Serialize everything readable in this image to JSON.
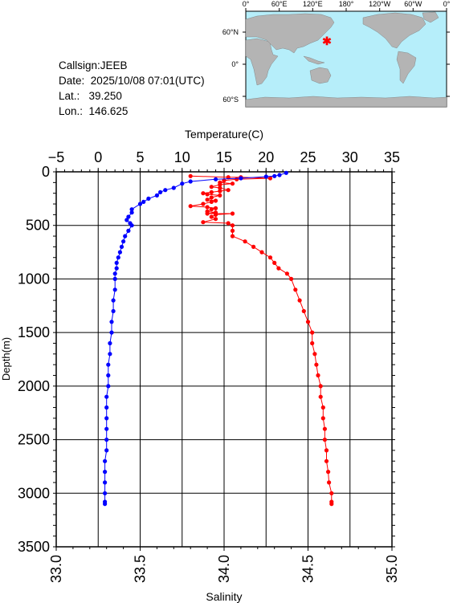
{
  "header": {
    "callsign_label": "Callsign:",
    "callsign": "JEEB",
    "date_label": "Date:",
    "date": "2025/10/08 07:01(UTC)",
    "lat_label": "Lat.:",
    "lat": "39.250",
    "lon_label": "Lon.:",
    "lon": "146.625"
  },
  "map": {
    "top_labels": [
      "0°",
      "60°E",
      "120°E",
      "180°",
      "120°W",
      "60°W",
      "0°"
    ],
    "left_labels": [
      "60°N",
      "0°",
      "60°S"
    ],
    "colors": {
      "ocean": "#b6eefa",
      "land": "#b4b4b4",
      "marker": "#ff0000"
    }
  },
  "chart_data": {
    "type": "line",
    "title": "",
    "xlabel_top": "Temperature(C)",
    "xlabel_bottom": "Salinity",
    "ylabel": "Depth(m)",
    "temperature_range": [
      -5,
      35
    ],
    "salinity_range": [
      33.0,
      35.0
    ],
    "depth_range": [
      0,
      3500
    ],
    "y_inverted": true,
    "grid": true,
    "temperature_ticks": [
      "-5",
      "0",
      "5",
      "10",
      "15",
      "20",
      "25",
      "30",
      "35"
    ],
    "salinity_ticks": [
      "33.0",
      "33.5",
      "34.0",
      "34.5",
      "35.0"
    ],
    "depth_ticks": [
      "0",
      "500",
      "1000",
      "1500",
      "2000",
      "2500",
      "3000",
      "3500"
    ],
    "series": [
      {
        "quantity": "temperature",
        "color": "#ff0000",
        "points": [
          [
            11.0,
            40
          ],
          [
            15.5,
            50
          ],
          [
            17.0,
            50
          ],
          [
            20.5,
            60
          ],
          [
            16.5,
            70
          ],
          [
            15.0,
            80
          ],
          [
            14.5,
            100
          ],
          [
            16.0,
            110
          ],
          [
            14.5,
            120
          ],
          [
            13.5,
            140
          ],
          [
            14.5,
            150
          ],
          [
            15.5,
            170
          ],
          [
            14.5,
            180
          ],
          [
            13.5,
            190
          ],
          [
            12.5,
            200
          ],
          [
            13.0,
            210
          ],
          [
            14.5,
            220
          ],
          [
            13.5,
            240
          ],
          [
            13.0,
            260
          ],
          [
            14.0,
            270
          ],
          [
            13.5,
            280
          ],
          [
            12.5,
            300
          ],
          [
            11.0,
            320
          ],
          [
            13.0,
            330
          ],
          [
            14.0,
            340
          ],
          [
            13.5,
            350
          ],
          [
            13.0,
            370
          ],
          [
            14.0,
            380
          ],
          [
            13.0,
            390
          ],
          [
            16.0,
            390
          ],
          [
            14.0,
            400
          ],
          [
            13.5,
            420
          ],
          [
            14.0,
            440
          ],
          [
            12.5,
            470
          ],
          [
            15.5,
            480
          ],
          [
            16.0,
            500
          ],
          [
            16.0,
            550
          ],
          [
            16.0,
            600
          ],
          [
            17.5,
            650
          ],
          [
            18.5,
            700
          ],
          [
            19.5,
            750
          ],
          [
            20.5,
            800
          ],
          [
            21.0,
            850
          ],
          [
            21.5,
            900
          ],
          [
            22.5,
            950
          ],
          [
            23.0,
            1000
          ],
          [
            23.5,
            1100
          ],
          [
            24.0,
            1200
          ],
          [
            24.5,
            1300
          ],
          [
            25.0,
            1400
          ],
          [
            25.5,
            1500
          ],
          [
            25.5,
            1600
          ],
          [
            25.8,
            1700
          ],
          [
            26.0,
            1800
          ],
          [
            26.2,
            1900
          ],
          [
            26.5,
            2000
          ],
          [
            26.5,
            2100
          ],
          [
            26.8,
            2200
          ],
          [
            26.8,
            2300
          ],
          [
            27.0,
            2400
          ],
          [
            27.0,
            2500
          ],
          [
            27.2,
            2600
          ],
          [
            27.2,
            2700
          ],
          [
            27.4,
            2800
          ],
          [
            27.5,
            2900
          ],
          [
            27.8,
            3000
          ],
          [
            27.8,
            3080
          ],
          [
            27.8,
            3100
          ]
        ]
      },
      {
        "quantity": "salinity",
        "color": "#0000ff",
        "points": [
          [
            34.37,
            10
          ],
          [
            34.33,
            30
          ],
          [
            34.3,
            40
          ],
          [
            34.25,
            45
          ],
          [
            34.1,
            60
          ],
          [
            33.95,
            70
          ],
          [
            33.8,
            90
          ],
          [
            33.75,
            110
          ],
          [
            33.7,
            150
          ],
          [
            33.65,
            170
          ],
          [
            33.62,
            190
          ],
          [
            33.6,
            220
          ],
          [
            33.55,
            250
          ],
          [
            33.52,
            280
          ],
          [
            33.5,
            300
          ],
          [
            33.45,
            350
          ],
          [
            33.45,
            380
          ],
          [
            33.43,
            420
          ],
          [
            33.42,
            450
          ],
          [
            33.44,
            480
          ],
          [
            33.45,
            500
          ],
          [
            33.43,
            550
          ],
          [
            33.41,
            600
          ],
          [
            33.4,
            650
          ],
          [
            33.39,
            700
          ],
          [
            33.38,
            750
          ],
          [
            33.37,
            800
          ],
          [
            33.36,
            850
          ],
          [
            33.36,
            900
          ],
          [
            33.35,
            950
          ],
          [
            33.35,
            1000
          ],
          [
            33.35,
            1100
          ],
          [
            33.34,
            1200
          ],
          [
            33.34,
            1300
          ],
          [
            33.33,
            1400
          ],
          [
            33.33,
            1500
          ],
          [
            33.32,
            1600
          ],
          [
            33.32,
            1700
          ],
          [
            33.31,
            1800
          ],
          [
            33.31,
            1900
          ],
          [
            33.31,
            2000
          ],
          [
            33.3,
            2100
          ],
          [
            33.3,
            2200
          ],
          [
            33.3,
            2300
          ],
          [
            33.3,
            2400
          ],
          [
            33.3,
            2500
          ],
          [
            33.3,
            2600
          ],
          [
            33.29,
            2700
          ],
          [
            33.29,
            2800
          ],
          [
            33.29,
            2900
          ],
          [
            33.29,
            3000
          ],
          [
            33.29,
            3080
          ],
          [
            33.29,
            3100
          ]
        ]
      }
    ]
  }
}
